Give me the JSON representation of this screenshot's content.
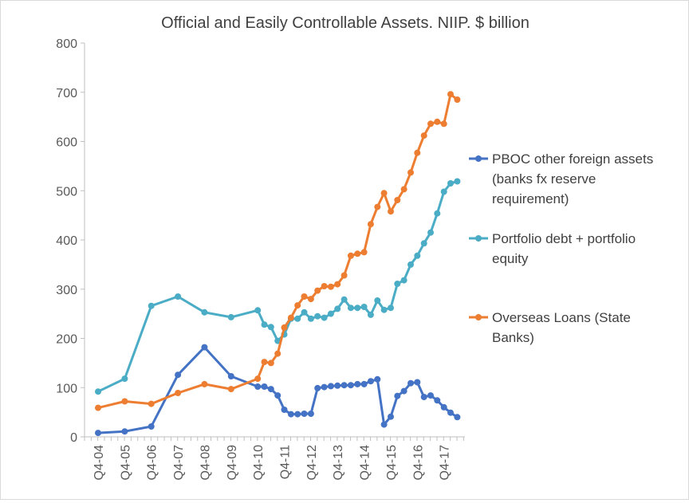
{
  "chart_data": {
    "type": "line",
    "title": "Official and Easily Controllable Assets.   NIIP.  $ billion",
    "xlabel": "",
    "ylabel": "",
    "ylim": [
      0,
      800
    ],
    "yticks": [
      "0",
      "100",
      "200",
      "300",
      "400",
      "500",
      "600",
      "700",
      "800"
    ],
    "ytick_values": [
      0,
      100,
      200,
      300,
      400,
      500,
      600,
      700,
      800
    ],
    "grid": false,
    "legend_position": "right",
    "x_tick_labels": [
      "Q4-04",
      "Q4-05",
      "Q4-06",
      "Q4-07",
      "Q4-08",
      "Q4-09",
      "Q4-10",
      "Q4-11",
      "Q4-12",
      "Q4-13",
      "Q4-14",
      "Q4-15",
      "Q4-16",
      "Q4-17"
    ],
    "x_tick_positions": [
      0,
      4,
      8,
      12,
      16,
      20,
      24,
      28,
      32,
      36,
      40,
      44,
      48,
      52
    ],
    "xlim": [
      0,
      55
    ],
    "series": [
      {
        "name": "PBOC other foreign assets (banks fx reserve requirement)",
        "legend_lines": [
          "PBOC other foreign assets",
          "(banks fx reserve",
          "requirement)"
        ],
        "color": "#4472C4",
        "x": [
          0,
          4,
          8,
          12,
          16,
          20,
          24,
          25,
          26,
          27,
          28,
          29,
          30,
          31,
          32,
          33,
          34,
          35,
          36,
          37,
          38,
          39,
          40,
          41,
          42,
          43,
          44,
          45,
          46,
          47,
          48,
          49,
          50,
          51,
          52,
          53,
          54
        ],
        "values": [
          8,
          11,
          21,
          126,
          182,
          123,
          102,
          102,
          97,
          84,
          55,
          46,
          46,
          47,
          47,
          99,
          101,
          103,
          104,
          105,
          105,
          107,
          107,
          113,
          117,
          25,
          41,
          83,
          93,
          109,
          111,
          81,
          84,
          74,
          60,
          49,
          40
        ]
      },
      {
        "name": "Portfolio debt + portfolio equity",
        "legend_lines": [
          "Portfolio debt  + portfolio",
          "equity"
        ],
        "color": "#4BACC6",
        "x": [
          0,
          4,
          8,
          12,
          16,
          20,
          24,
          25,
          26,
          27,
          28,
          29,
          30,
          31,
          32,
          33,
          34,
          35,
          36,
          37,
          38,
          39,
          40,
          41,
          42,
          43,
          44,
          45,
          46,
          47,
          48,
          49,
          50,
          51,
          52,
          53,
          54
        ],
        "values": [
          92,
          118,
          266,
          285,
          253,
          243,
          257,
          228,
          223,
          195,
          208,
          240,
          240,
          253,
          240,
          245,
          242,
          250,
          260,
          279,
          262,
          262,
          264,
          248,
          277,
          258,
          262,
          311,
          318,
          350,
          368,
          393,
          415,
          454,
          498,
          515,
          519
        ]
      },
      {
        "name": "Overseas Loans (State Banks)",
        "legend_lines": [
          "Overseas Loans (State",
          "Banks)"
        ],
        "color": "#ED7D31",
        "x": [
          0,
          4,
          8,
          12,
          16,
          20,
          24,
          25,
          26,
          27,
          28,
          29,
          30,
          31,
          32,
          33,
          34,
          35,
          36,
          37,
          38,
          39,
          40,
          41,
          42,
          43,
          44,
          45,
          46,
          47,
          48,
          49,
          50,
          51,
          52,
          53,
          54
        ],
        "values": [
          59,
          72,
          67,
          89,
          107,
          97,
          118,
          152,
          150,
          169,
          222,
          242,
          267,
          285,
          280,
          297,
          306,
          305,
          310,
          328,
          368,
          372,
          375,
          432,
          467,
          495,
          458,
          481,
          503,
          537,
          577,
          612,
          636,
          640,
          636,
          696,
          685
        ]
      }
    ]
  }
}
